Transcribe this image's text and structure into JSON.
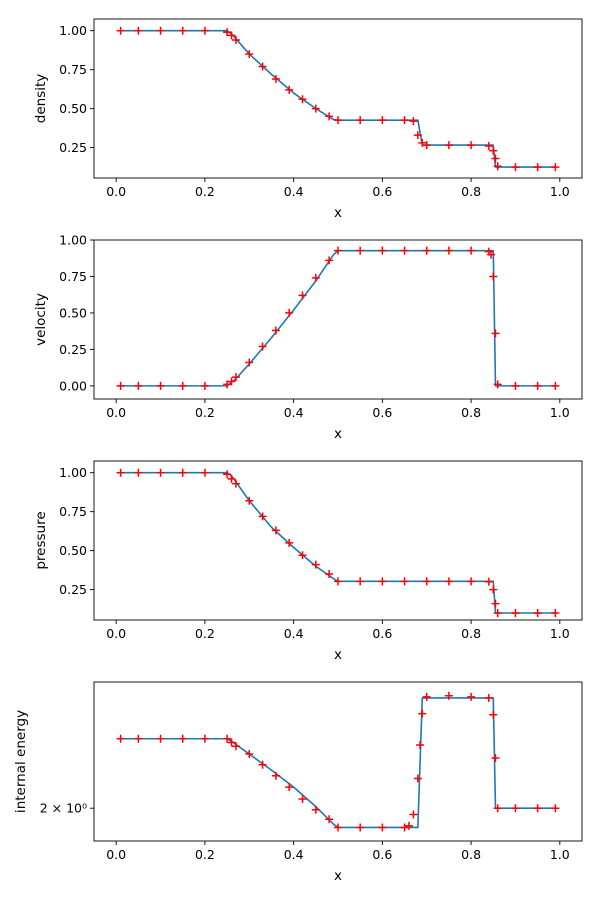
{
  "chart_data": [
    {
      "type": "line",
      "ylabel": "density",
      "xlabel": "x",
      "xlim": [
        -0.05,
        1.05
      ],
      "ylim": [
        0.055,
        1.075
      ],
      "yscale": "linear",
      "xticks": [
        0.0,
        0.2,
        0.4,
        0.6,
        0.8,
        1.0
      ],
      "xtick_labels": [
        "0.0",
        "0.2",
        "0.4",
        "0.6",
        "0.8",
        "1.0"
      ],
      "yticks": [
        0.25,
        0.5,
        0.75,
        1.0
      ],
      "ytick_labels": [
        "0.25",
        "0.50",
        "0.75",
        "1.00"
      ],
      "series": [
        {
          "style": "line",
          "color": "#1f77b4",
          "x": [
            0.01,
            0.25,
            0.26,
            0.3,
            0.35,
            0.4,
            0.45,
            0.49,
            0.5,
            0.68,
            0.69,
            0.85,
            0.855,
            0.99
          ],
          "y": [
            1.0,
            1.0,
            0.98,
            0.85,
            0.72,
            0.6,
            0.5,
            0.43,
            0.426,
            0.426,
            0.266,
            0.266,
            0.125,
            0.125
          ]
        },
        {
          "style": "markers",
          "color": "#ff0000",
          "x": [
            0.01,
            0.05,
            0.1,
            0.15,
            0.2,
            0.25,
            0.26,
            0.27,
            0.3,
            0.33,
            0.36,
            0.39,
            0.42,
            0.45,
            0.48,
            0.5,
            0.55,
            0.6,
            0.65,
            0.67,
            0.68,
            0.69,
            0.7,
            0.75,
            0.8,
            0.84,
            0.85,
            0.855,
            0.86,
            0.9,
            0.95,
            0.99
          ],
          "y": [
            1.0,
            1.0,
            1.0,
            1.0,
            1.0,
            0.99,
            0.97,
            0.94,
            0.85,
            0.77,
            0.69,
            0.62,
            0.56,
            0.5,
            0.45,
            0.426,
            0.426,
            0.426,
            0.426,
            0.42,
            0.33,
            0.28,
            0.266,
            0.266,
            0.266,
            0.26,
            0.23,
            0.18,
            0.13,
            0.125,
            0.125,
            0.125
          ]
        }
      ]
    },
    {
      "type": "line",
      "ylabel": "velocity",
      "xlabel": "x",
      "xlim": [
        -0.05,
        1.05
      ],
      "ylim": [
        -0.09,
        1.0
      ],
      "yscale": "linear",
      "xticks": [
        0.0,
        0.2,
        0.4,
        0.6,
        0.8,
        1.0
      ],
      "xtick_labels": [
        "0.0",
        "0.2",
        "0.4",
        "0.6",
        "0.8",
        "1.0"
      ],
      "yticks": [
        0.0,
        0.25,
        0.5,
        0.75,
        1.0
      ],
      "ytick_labels": [
        "0.00",
        "0.25",
        "0.50",
        "0.75",
        "1.00"
      ],
      "series": [
        {
          "style": "line",
          "color": "#1f77b4",
          "x": [
            0.01,
            0.25,
            0.27,
            0.3,
            0.35,
            0.4,
            0.45,
            0.49,
            0.5,
            0.85,
            0.855,
            0.99
          ],
          "y": [
            0.0,
            0.0,
            0.05,
            0.15,
            0.33,
            0.52,
            0.72,
            0.9,
            0.927,
            0.927,
            0.0,
            0.0
          ]
        },
        {
          "style": "markers",
          "color": "#ff0000",
          "x": [
            0.01,
            0.05,
            0.1,
            0.15,
            0.2,
            0.25,
            0.26,
            0.27,
            0.3,
            0.33,
            0.36,
            0.39,
            0.42,
            0.45,
            0.48,
            0.5,
            0.55,
            0.6,
            0.65,
            0.7,
            0.75,
            0.8,
            0.84,
            0.845,
            0.85,
            0.855,
            0.86,
            0.9,
            0.95,
            0.99
          ],
          "y": [
            0.0,
            0.0,
            0.0,
            0.0,
            0.0,
            0.01,
            0.03,
            0.06,
            0.16,
            0.27,
            0.38,
            0.5,
            0.62,
            0.74,
            0.86,
            0.927,
            0.927,
            0.927,
            0.927,
            0.927,
            0.927,
            0.927,
            0.92,
            0.9,
            0.75,
            0.36,
            0.01,
            0.0,
            0.0,
            0.0
          ]
        }
      ]
    },
    {
      "type": "line",
      "ylabel": "pressure",
      "xlabel": "x",
      "xlim": [
        -0.05,
        1.05
      ],
      "ylim": [
        0.055,
        1.075
      ],
      "yscale": "linear",
      "xticks": [
        0.0,
        0.2,
        0.4,
        0.6,
        0.8,
        1.0
      ],
      "xtick_labels": [
        "0.0",
        "0.2",
        "0.4",
        "0.6",
        "0.8",
        "1.0"
      ],
      "yticks": [
        0.25,
        0.5,
        0.75,
        1.0
      ],
      "ytick_labels": [
        "0.25",
        "0.50",
        "0.75",
        "1.00"
      ],
      "series": [
        {
          "style": "line",
          "color": "#1f77b4",
          "x": [
            0.01,
            0.25,
            0.26,
            0.3,
            0.35,
            0.4,
            0.45,
            0.49,
            0.5,
            0.85,
            0.855,
            0.99
          ],
          "y": [
            1.0,
            1.0,
            0.98,
            0.82,
            0.65,
            0.52,
            0.4,
            0.32,
            0.303,
            0.303,
            0.1,
            0.1
          ]
        },
        {
          "style": "markers",
          "color": "#ff0000",
          "x": [
            0.01,
            0.05,
            0.1,
            0.15,
            0.2,
            0.25,
            0.26,
            0.27,
            0.3,
            0.33,
            0.36,
            0.39,
            0.42,
            0.45,
            0.48,
            0.5,
            0.55,
            0.6,
            0.65,
            0.7,
            0.75,
            0.8,
            0.84,
            0.85,
            0.855,
            0.86,
            0.9,
            0.95,
            0.99
          ],
          "y": [
            1.0,
            1.0,
            1.0,
            1.0,
            1.0,
            0.99,
            0.96,
            0.93,
            0.82,
            0.72,
            0.63,
            0.55,
            0.47,
            0.41,
            0.35,
            0.303,
            0.303,
            0.303,
            0.303,
            0.303,
            0.303,
            0.303,
            0.3,
            0.25,
            0.16,
            0.1,
            0.1,
            0.1,
            0.1
          ]
        }
      ]
    },
    {
      "type": "line",
      "ylabel": "internal energy",
      "xlabel": "x",
      "xlim": [
        -0.05,
        1.05
      ],
      "ylim": [
        1.8,
        3.0
      ],
      "yscale": "log",
      "xticks": [
        0.0,
        0.2,
        0.4,
        0.6,
        0.8,
        1.0
      ],
      "xtick_labels": [
        "0.0",
        "0.2",
        "0.4",
        "0.6",
        "0.8",
        "1.0"
      ],
      "yticks": [
        2.0
      ],
      "ytick_labels": [
        "2 × 10⁰"
      ],
      "series": [
        {
          "style": "line",
          "color": "#1f77b4",
          "x": [
            0.01,
            0.25,
            0.26,
            0.3,
            0.35,
            0.4,
            0.45,
            0.49,
            0.5,
            0.68,
            0.69,
            0.85,
            0.855,
            0.99
          ],
          "y": [
            2.5,
            2.5,
            2.48,
            2.38,
            2.26,
            2.14,
            2.01,
            1.9,
            1.88,
            1.88,
            2.85,
            2.85,
            2.0,
            2.0
          ]
        },
        {
          "style": "markers",
          "color": "#ff0000",
          "x": [
            0.01,
            0.05,
            0.1,
            0.15,
            0.2,
            0.25,
            0.26,
            0.27,
            0.3,
            0.33,
            0.36,
            0.39,
            0.42,
            0.45,
            0.48,
            0.5,
            0.55,
            0.6,
            0.65,
            0.66,
            0.67,
            0.68,
            0.685,
            0.69,
            0.7,
            0.75,
            0.8,
            0.84,
            0.85,
            0.855,
            0.86,
            0.9,
            0.95,
            0.99
          ],
          "y": [
            2.5,
            2.5,
            2.5,
            2.5,
            2.5,
            2.5,
            2.47,
            2.44,
            2.38,
            2.3,
            2.22,
            2.14,
            2.06,
            1.99,
            1.93,
            1.88,
            1.88,
            1.88,
            1.88,
            1.89,
            1.96,
            2.2,
            2.45,
            2.71,
            2.86,
            2.87,
            2.86,
            2.85,
            2.7,
            2.35,
            2.0,
            2.0,
            2.0,
            2.0
          ]
        }
      ]
    }
  ]
}
